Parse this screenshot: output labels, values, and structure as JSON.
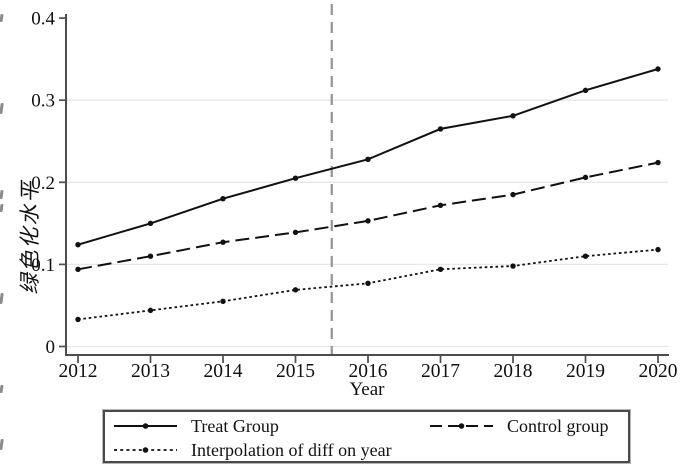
{
  "chart_data": {
    "type": "line",
    "title": "",
    "xlabel": "Year",
    "ylabel": "绿色化水平",
    "x": [
      2012,
      2013,
      2014,
      2015,
      2016,
      2017,
      2018,
      2019,
      2020
    ],
    "x_tick_labels": [
      "2012",
      "2013",
      "2014",
      "2015",
      "2016",
      "2017",
      "2018",
      "2019",
      "2020"
    ],
    "y_ticks": [
      0,
      0.1,
      0.2,
      0.3,
      0.4
    ],
    "y_tick_labels": [
      "0",
      "0.1",
      "0.2",
      "0.3",
      "0.4"
    ],
    "grid_ticks": [
      0,
      0.1,
      0.2,
      0.3
    ],
    "xlim": [
      2011.84,
      2020.14
    ],
    "ylim": [
      0,
      0.4
    ],
    "grid": "horizontal-only",
    "reference_line_x": 2015.5,
    "legend_position": "bottom-box",
    "series": [
      {
        "name": "Treat Group",
        "line_style": "solid",
        "marker": "circle",
        "values": [
          0.124,
          0.15,
          0.18,
          0.205,
          0.228,
          0.265,
          0.281,
          0.312,
          0.338
        ]
      },
      {
        "name": "Control group",
        "line_style": "long-dash",
        "marker": "circle",
        "values": [
          0.094,
          0.11,
          0.127,
          0.139,
          0.153,
          0.172,
          0.185,
          0.206,
          0.224
        ]
      },
      {
        "name": "Interpolation of diff on year",
        "line_style": "dotted",
        "marker": "circle",
        "values": [
          0.033,
          0.044,
          0.055,
          0.069,
          0.077,
          0.094,
          0.098,
          0.11,
          0.118
        ]
      }
    ],
    "colors": {
      "line": "#111111",
      "axis": "#4d4d4d",
      "grid": "#e7e7e7",
      "reference_line": "#949494",
      "text": "#111111",
      "background": "#ffffff"
    }
  }
}
